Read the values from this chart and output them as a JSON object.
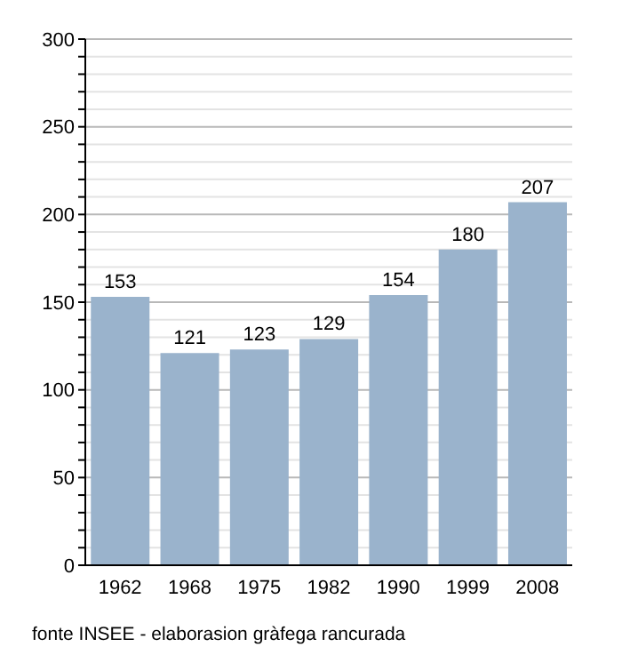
{
  "chart_data": {
    "type": "bar",
    "categories": [
      "1962",
      "1968",
      "1975",
      "1982",
      "1990",
      "1999",
      "2008"
    ],
    "values": [
      153,
      121,
      123,
      129,
      154,
      180,
      207
    ],
    "color": "#9ab3cc",
    "data_labels": true,
    "ylim": [
      0,
      300
    ],
    "yticks": [
      0,
      {
        "value": 10,
        "label": null
      },
      {
        "value": 20,
        "label": null
      },
      {
        "value": 30,
        "label": null
      },
      {
        "value": 40,
        "label": null
      },
      50,
      {
        "value": 60,
        "label": null
      },
      {
        "value": 70,
        "label": null
      },
      {
        "value": 80,
        "label": null
      },
      {
        "value": 90,
        "label": null
      },
      100,
      {
        "value": 110,
        "label": null
      },
      {
        "value": 120,
        "label": null
      },
      {
        "value": 130,
        "label": null
      },
      {
        "value": 140,
        "label": null
      },
      150,
      {
        "value": 160,
        "label": null
      },
      {
        "value": 170,
        "label": null
      },
      {
        "value": 180,
        "label": null
      },
      {
        "value": 190,
        "label": null
      },
      200,
      {
        "value": 210,
        "label": null
      },
      {
        "value": 220,
        "label": null
      },
      {
        "value": 230,
        "label": null
      },
      {
        "value": 240,
        "label": null
      },
      250,
      {
        "value": 260,
        "label": null
      },
      {
        "value": 270,
        "label": null
      },
      {
        "value": 280,
        "label": null
      },
      {
        "value": 290,
        "label": null
      },
      300
    ],
    "grid": "y",
    "annotations": [
      "fonte INSEE - elaborasion gràfega rancurada"
    ]
  }
}
